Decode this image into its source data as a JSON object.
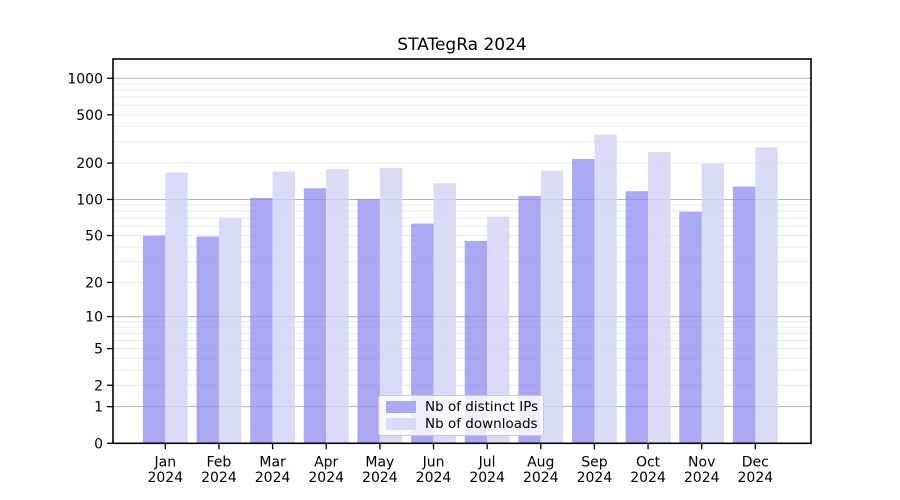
{
  "title": "STATegRa 2024",
  "legend": {
    "items": [
      {
        "label": "Nb of distinct IPs",
        "color": "#a8a8f3"
      },
      {
        "label": "Nb of downloads",
        "color": "#dbdbf8"
      }
    ]
  },
  "chart_data": {
    "type": "bar",
    "title": "STATegRa 2024",
    "categories": [
      "Jan 2024",
      "Feb 2024",
      "Mar 2024",
      "Apr 2024",
      "May 2024",
      "Jun 2024",
      "Jul 2024",
      "Aug 2024",
      "Sep 2024",
      "Oct 2024",
      "Nov 2024",
      "Dec 2024"
    ],
    "month_labels": [
      "Jan",
      "Feb",
      "Mar",
      "Apr",
      "May",
      "Jun",
      "Jul",
      "Aug",
      "Sep",
      "Oct",
      "Nov",
      "Dec"
    ],
    "year": "2024",
    "series": [
      {
        "name": "Nb of distinct IPs",
        "values": [
          50,
          49,
          103,
          124,
          101,
          63,
          45,
          107,
          216,
          117,
          79,
          128
        ],
        "fill": "rgba(139,139,239,0.75)",
        "legend_color": "#a8a8f3"
      },
      {
        "name": "Nb of downloads",
        "values": [
          167,
          70,
          170,
          178,
          182,
          136,
          72,
          173,
          343,
          247,
          198,
          270
        ],
        "fill": "rgba(210,210,246,0.8)",
        "legend_color": "#dbdbf8"
      }
    ],
    "xlabel": "",
    "ylabel": "",
    "y_scale": "log10(value+1)",
    "y_ticks": [
      0,
      1,
      2,
      5,
      10,
      20,
      50,
      100,
      200,
      500,
      1000
    ],
    "y_major_gridlines": [
      1,
      10,
      100,
      1000
    ],
    "ylim": [
      0,
      1440
    ],
    "grid": true,
    "legend_position": "lower center",
    "colors": {
      "major_grid": "#b3b3b3",
      "minor_grid": "#e8e8e8",
      "axis": "#000000",
      "text": "#000000",
      "background": "#ffffff"
    }
  }
}
